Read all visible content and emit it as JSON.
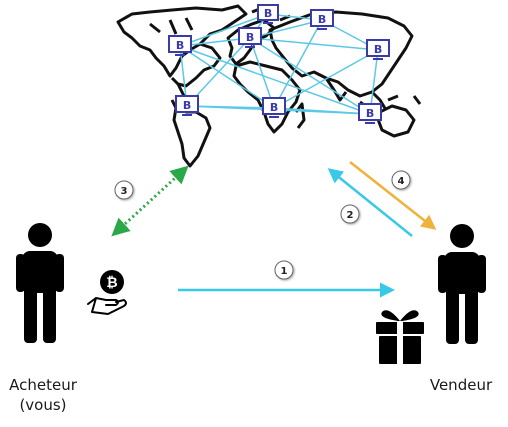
{
  "diagram": {
    "buyer": {
      "label_line1": "Acheteur",
      "label_line2": "(vous)"
    },
    "seller": {
      "label": "Vendeur"
    },
    "node_symbol": "B",
    "steps": [
      "1",
      "2",
      "3",
      "4"
    ],
    "icons": {
      "buyer": "person-icon",
      "seller": "person-icon",
      "payment": "bitcoin-hand-icon",
      "goods": "gift-icon",
      "network_node": "bitcoin-monitor-icon",
      "world_map": "world-map-icon"
    },
    "colors": {
      "network_links": "#5bc8e6",
      "payment_arrow": "#38c8e8",
      "confirm_arrow": "#f0b23a",
      "sync_arrow": "#2aa84a",
      "node_frame": "#3a3aa8",
      "figure": "#000000"
    }
  }
}
